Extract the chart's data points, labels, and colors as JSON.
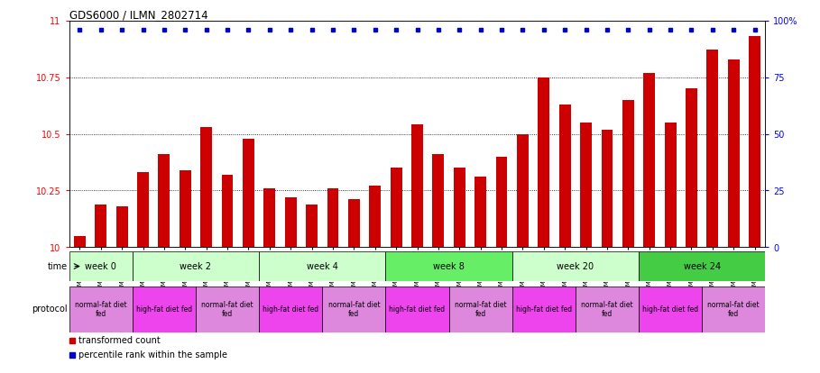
{
  "title": "GDS6000 / ILMN_2802714",
  "samples": [
    "GSM1577825",
    "GSM1577826",
    "GSM1577827",
    "GSM1577831",
    "GSM1577832",
    "GSM1577833",
    "GSM1577828",
    "GSM1577829",
    "GSM1577830",
    "GSM1577837",
    "GSM1577838",
    "GSM1577839",
    "GSM1577834",
    "GSM1577835",
    "GSM1577836",
    "GSM1577843",
    "GSM1577844",
    "GSM1577845",
    "GSM1577840",
    "GSM1577841",
    "GSM1577842",
    "GSM1577849",
    "GSM1577850",
    "GSM1577851",
    "GSM1577846",
    "GSM1577847",
    "GSM1577848",
    "GSM1577855",
    "GSM1577856",
    "GSM1577857",
    "GSM1577852",
    "GSM1577853",
    "GSM1577854"
  ],
  "bar_values": [
    10.05,
    10.19,
    10.18,
    10.33,
    10.41,
    10.34,
    10.53,
    10.32,
    10.48,
    10.26,
    10.22,
    10.19,
    10.26,
    10.21,
    10.27,
    10.35,
    10.54,
    10.41,
    10.35,
    10.31,
    10.4,
    10.5,
    10.75,
    10.63,
    10.55,
    10.52,
    10.65,
    10.77,
    10.55,
    10.7,
    10.87,
    10.83,
    10.93
  ],
  "percentile_values": [
    100,
    100,
    100,
    100,
    100,
    100,
    100,
    100,
    100,
    100,
    100,
    100,
    100,
    100,
    100,
    100,
    100,
    100,
    100,
    100,
    100,
    100,
    100,
    100,
    100,
    100,
    100,
    100,
    100,
    100,
    100,
    100,
    100
  ],
  "bar_color": "#cc0000",
  "percentile_color": "#0000cc",
  "ylim_left": [
    10,
    11
  ],
  "ylim_right": [
    0,
    100
  ],
  "yticks_left": [
    10,
    10.25,
    10.5,
    10.75,
    11
  ],
  "yticks_right": [
    0,
    25,
    50,
    75,
    100
  ],
  "time_groups": [
    {
      "label": "week 0",
      "start": 0,
      "end": 3,
      "color": "#ccffcc"
    },
    {
      "label": "week 2",
      "start": 3,
      "end": 9,
      "color": "#ccffcc"
    },
    {
      "label": "week 4",
      "start": 9,
      "end": 15,
      "color": "#ccffcc"
    },
    {
      "label": "week 8",
      "start": 15,
      "end": 21,
      "color": "#66ee66"
    },
    {
      "label": "week 20",
      "start": 21,
      "end": 27,
      "color": "#ccffcc"
    },
    {
      "label": "week 24",
      "start": 27,
      "end": 33,
      "color": "#44cc44"
    }
  ],
  "protocol_groups": [
    {
      "label": "normal-fat diet\nfed",
      "start": 0,
      "end": 3,
      "color": "#dd88dd"
    },
    {
      "label": "high-fat diet fed",
      "start": 3,
      "end": 6,
      "color": "#ee44ee"
    },
    {
      "label": "normal-fat diet\nfed",
      "start": 6,
      "end": 9,
      "color": "#dd88dd"
    },
    {
      "label": "high-fat diet fed",
      "start": 9,
      "end": 12,
      "color": "#ee44ee"
    },
    {
      "label": "normal-fat diet\nfed",
      "start": 12,
      "end": 15,
      "color": "#dd88dd"
    },
    {
      "label": "high-fat diet fed",
      "start": 15,
      "end": 18,
      "color": "#ee44ee"
    },
    {
      "label": "normal-fat diet\nfed",
      "start": 18,
      "end": 21,
      "color": "#dd88dd"
    },
    {
      "label": "high-fat diet fed",
      "start": 21,
      "end": 24,
      "color": "#ee44ee"
    },
    {
      "label": "normal-fat diet\nfed",
      "start": 24,
      "end": 27,
      "color": "#dd88dd"
    },
    {
      "label": "high-fat diet fed",
      "start": 27,
      "end": 30,
      "color": "#ee44ee"
    },
    {
      "label": "normal-fat diet\nfed",
      "start": 30,
      "end": 33,
      "color": "#dd88dd"
    }
  ],
  "background_color": "#ffffff"
}
